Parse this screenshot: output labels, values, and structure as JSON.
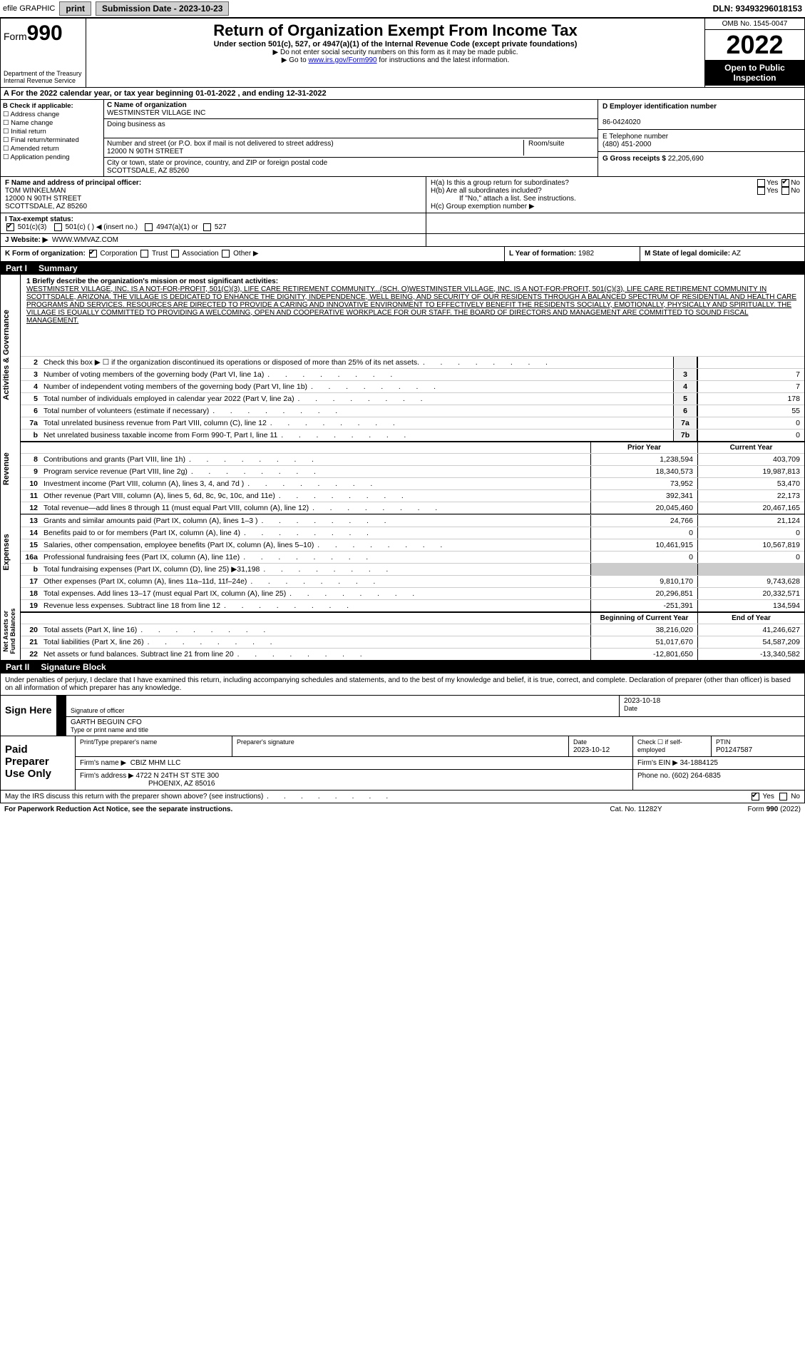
{
  "topbar": {
    "efile": "efile GRAPHIC",
    "print": "print",
    "subdate_lbl": "Submission Date - 2023-10-23",
    "dln": "DLN: 93493296018153"
  },
  "header": {
    "form_prefix": "Form",
    "form_num": "990",
    "dept": "Department of the Treasury",
    "irs": "Internal Revenue Service",
    "title": "Return of Organization Exempt From Income Tax",
    "sub": "Under section 501(c), 527, or 4947(a)(1) of the Internal Revenue Code (except private foundations)",
    "note1": "▶ Do not enter social security numbers on this form as it may be made public.",
    "note2_pre": "▶ Go to ",
    "note2_link": "www.irs.gov/Form990",
    "note2_post": " for instructions and the latest information.",
    "omb": "OMB No. 1545-0047",
    "year": "2022",
    "open": "Open to Public Inspection"
  },
  "rowA": "A For the 2022 calendar year, or tax year beginning 01-01-2022   , and ending 12-31-2022",
  "colB": {
    "hdr": "B Check if applicable:",
    "items": [
      "Address change",
      "Name change",
      "Initial return",
      "Final return/terminated",
      "Amended return",
      "Application pending"
    ]
  },
  "colC": {
    "name_lbl": "C Name of organization",
    "name": "WESTMINSTER VILLAGE INC",
    "dba_lbl": "Doing business as",
    "dba": "",
    "addr_lbl": "Number and street (or P.O. box if mail is not delivered to street address)",
    "addr": "12000 N 90TH STREET",
    "room_lbl": "Room/suite",
    "city_lbl": "City or town, state or province, country, and ZIP or foreign postal code",
    "city": "SCOTTSDALE, AZ  85260"
  },
  "colD": {
    "ein_lbl": "D Employer identification number",
    "ein": "86-0424020",
    "tel_lbl": "E Telephone number",
    "tel": "(480) 451-2000",
    "gross_lbl": "G Gross receipts $",
    "gross": "22,205,690"
  },
  "rowF": {
    "lbl": "F  Name and address of principal officer:",
    "name": "TOM WINKELMAN",
    "addr1": "12000 N 90TH STREET",
    "addr2": "SCOTTSDALE, AZ  85260"
  },
  "rowH": {
    "ha": "H(a)  Is this a group return for subordinates?",
    "hb": "H(b)  Are all subordinates included?",
    "hbnote": "If \"No,\" attach a list. See instructions.",
    "hc": "H(c)  Group exemption number ▶",
    "yes": "Yes",
    "no": "No"
  },
  "rowI": {
    "lbl": "I   Tax-exempt status:",
    "c3": "501(c)(3)",
    "c": "501(c) (  ) ◀ (insert no.)",
    "a1": "4947(a)(1) or",
    "s527": "527"
  },
  "rowJ": {
    "lbl": "J   Website: ▶",
    "val": "WWW.WMVAZ.COM"
  },
  "rowK": {
    "lbl": "K Form of organization:",
    "opts": [
      "Corporation",
      "Trust",
      "Association",
      "Other ▶"
    ],
    "l_lbl": "L Year of formation:",
    "l_val": "1982",
    "m_lbl": "M State of legal domicile:",
    "m_val": "AZ"
  },
  "part1": {
    "num": "Part I",
    "title": "Summary"
  },
  "mission": {
    "lbl": "1  Briefly describe the organization's mission or most significant activities:",
    "txt": "WESTMINSTER VILLAGE, INC. IS A NOT-FOR-PROFIT, 501(C)(3), LIFE CARE RETIREMENT COMMUNITY...(SCH. O)WESTMINSTER VILLAGE, INC. IS A NOT-FOR-PROFIT, 501(C)(3), LIFE CARE RETIREMENT COMMUNITY IN SCOTTSDALE, ARIZONA. THE VILLAGE IS DEDICATED TO ENHANCE THE DIGNITY, INDEPENDENCE, WELL BEING, AND SECURITY OF OUR RESIDENTS THROUGH A BALANCED SPECTRUM OF RESIDENTIAL AND HEALTH CARE PROGRAMS AND SERVICES. RESOURCES ARE DIRECTED TO PROVIDE A CARING AND INNOVATIVE ENVIRONMENT TO EFFECTIVELY BENEFIT THE RESIDENTS SOCIALLY, EMOTIONALLY, PHYSICALLY AND SPIRITUALLY. THE VILLAGE IS EQUALLY COMMITTED TO PROVIDING A WELCOMING, OPEN AND COOPERATIVE WORKPLACE FOR OUR STAFF. THE BOARD OF DIRECTORS AND MANAGEMENT ARE COMMITTED TO SOUND FISCAL MANAGEMENT."
  },
  "gov_rows": [
    {
      "n": "2",
      "d": "Check this box ▶ ☐ if the organization discontinued its operations or disposed of more than 25% of its net assets.",
      "box": "",
      "v": ""
    },
    {
      "n": "3",
      "d": "Number of voting members of the governing body (Part VI, line 1a)",
      "box": "3",
      "v": "7"
    },
    {
      "n": "4",
      "d": "Number of independent voting members of the governing body (Part VI, line 1b)",
      "box": "4",
      "v": "7"
    },
    {
      "n": "5",
      "d": "Total number of individuals employed in calendar year 2022 (Part V, line 2a)",
      "box": "5",
      "v": "178"
    },
    {
      "n": "6",
      "d": "Total number of volunteers (estimate if necessary)",
      "box": "6",
      "v": "55"
    },
    {
      "n": "7a",
      "d": "Total unrelated business revenue from Part VIII, column (C), line 12",
      "box": "7a",
      "v": "0"
    },
    {
      "n": "b",
      "d": "Net unrelated business taxable income from Form 990-T, Part I, line 11",
      "box": "7b",
      "v": "0"
    }
  ],
  "yr_hdr": {
    "prior": "Prior Year",
    "curr": "Current Year"
  },
  "rev_rows": [
    {
      "n": "8",
      "d": "Contributions and grants (Part VIII, line 1h)",
      "p": "1,238,594",
      "c": "403,709"
    },
    {
      "n": "9",
      "d": "Program service revenue (Part VIII, line 2g)",
      "p": "18,340,573",
      "c": "19,987,813"
    },
    {
      "n": "10",
      "d": "Investment income (Part VIII, column (A), lines 3, 4, and 7d )",
      "p": "73,952",
      "c": "53,470"
    },
    {
      "n": "11",
      "d": "Other revenue (Part VIII, column (A), lines 5, 6d, 8c, 9c, 10c, and 11e)",
      "p": "392,341",
      "c": "22,173"
    },
    {
      "n": "12",
      "d": "Total revenue—add lines 8 through 11 (must equal Part VIII, column (A), line 12)",
      "p": "20,045,460",
      "c": "20,467,165"
    }
  ],
  "exp_rows": [
    {
      "n": "13",
      "d": "Grants and similar amounts paid (Part IX, column (A), lines 1–3 )",
      "p": "24,766",
      "c": "21,124"
    },
    {
      "n": "14",
      "d": "Benefits paid to or for members (Part IX, column (A), line 4)",
      "p": "0",
      "c": "0"
    },
    {
      "n": "15",
      "d": "Salaries, other compensation, employee benefits (Part IX, column (A), lines 5–10)",
      "p": "10,461,915",
      "c": "10,567,819"
    },
    {
      "n": "16a",
      "d": "Professional fundraising fees (Part IX, column (A), line 11e)",
      "p": "0",
      "c": "0"
    },
    {
      "n": "b",
      "d": "Total fundraising expenses (Part IX, column (D), line 25) ▶31,198",
      "p": "",
      "c": "",
      "shade": true
    },
    {
      "n": "17",
      "d": "Other expenses (Part IX, column (A), lines 11a–11d, 11f–24e)",
      "p": "9,810,170",
      "c": "9,743,628"
    },
    {
      "n": "18",
      "d": "Total expenses. Add lines 13–17 (must equal Part IX, column (A), line 25)",
      "p": "20,296,851",
      "c": "20,332,571"
    },
    {
      "n": "19",
      "d": "Revenue less expenses. Subtract line 18 from line 12",
      "p": "-251,391",
      "c": "134,594"
    }
  ],
  "na_hdr": {
    "beg": "Beginning of Current Year",
    "end": "End of Year"
  },
  "na_rows": [
    {
      "n": "20",
      "d": "Total assets (Part X, line 16)",
      "p": "38,216,020",
      "c": "41,246,627"
    },
    {
      "n": "21",
      "d": "Total liabilities (Part X, line 26)",
      "p": "51,017,670",
      "c": "54,587,209"
    },
    {
      "n": "22",
      "d": "Net assets or fund balances. Subtract line 21 from line 20",
      "p": "-12,801,650",
      "c": "-13,340,582"
    }
  ],
  "vlabels": {
    "gov": "Activities & Governance",
    "rev": "Revenue",
    "exp": "Expenses",
    "na": "Net Assets or Fund Balances"
  },
  "part2": {
    "num": "Part II",
    "title": "Signature Block"
  },
  "sig": {
    "decl": "Under penalties of perjury, I declare that I have examined this return, including accompanying schedules and statements, and to the best of my knowledge and belief, it is true, correct, and complete. Declaration of preparer (other than officer) is based on all information of which preparer has any knowledge.",
    "sign_here": "Sign Here",
    "sig_lbl": "Signature of officer",
    "date": "2023-10-18",
    "date_lbl": "Date",
    "name": "GARTH BEGUIN  CFO",
    "name_lbl": "Type or print name and title"
  },
  "paid": {
    "lbl": "Paid Preparer Use Only",
    "h1": "Print/Type preparer's name",
    "h2": "Preparer's signature",
    "h3": "Date",
    "date": "2023-10-12",
    "h4": "Check ☐ if self-employed",
    "h5": "PTIN",
    "ptin": "P01247587",
    "firm_lbl": "Firm's name    ▶",
    "firm": "CBIZ MHM LLC",
    "ein_lbl": "Firm's EIN ▶",
    "ein": "34-1884125",
    "addr_lbl": "Firm's address ▶",
    "addr1": "4722 N 24TH ST STE 300",
    "addr2": "PHOENIX, AZ  85016",
    "phone_lbl": "Phone no.",
    "phone": "(602) 264-6835"
  },
  "footer": {
    "discuss": "May the IRS discuss this return with the preparer shown above? (see instructions)",
    "yes": "Yes",
    "no": "No",
    "paperwork": "For Paperwork Reduction Act Notice, see the separate instructions.",
    "cat": "Cat. No. 11282Y",
    "form": "Form 990 (2022)"
  }
}
